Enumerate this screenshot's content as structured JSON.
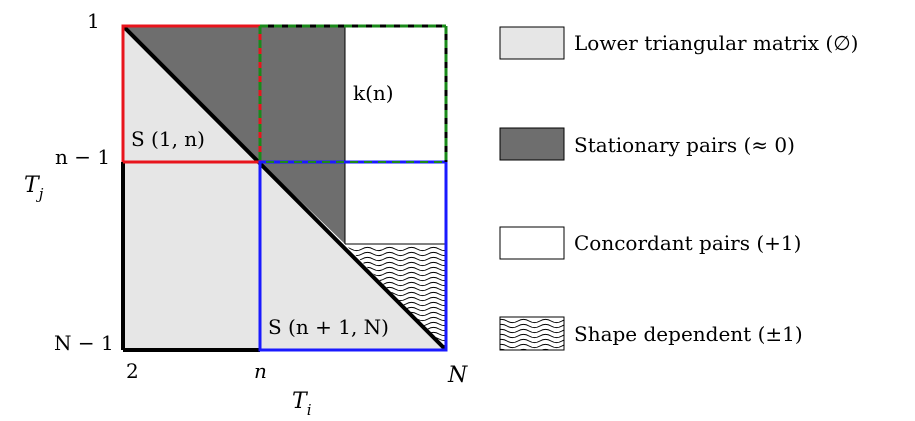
{
  "axes": {
    "y_ticks": {
      "top": "1",
      "mid": "n − 1",
      "bottom": "N − 1"
    },
    "x_ticks": {
      "left": "2",
      "mid": "n",
      "right": "N"
    },
    "y_label": "T",
    "y_label_sub": "j",
    "x_label": "T",
    "x_label_sub": "i"
  },
  "regions": {
    "s1n": "S (1, n)",
    "kn": "k(n)",
    "sn1N": "S (n + 1, N)"
  },
  "legend": [
    {
      "key": "lower",
      "label": "Lower triangular matrix (∅)",
      "fill": "#e6e6e6"
    },
    {
      "key": "stationary",
      "label": "Stationary pairs (≈ 0)",
      "fill": "#6e6e6e"
    },
    {
      "key": "concordant",
      "label": "Concordant pairs (+1)",
      "fill": "#ffffff"
    },
    {
      "key": "shape",
      "label": "Shape dependent (±1)",
      "fill": "wavy"
    }
  ],
  "colors": {
    "red_block": "#e8141c",
    "blue_block": "#1a1aff",
    "green_block": "#1a8a1a",
    "lower_fill": "#e6e6e6",
    "stationary_fill": "#6e6e6e"
  }
}
